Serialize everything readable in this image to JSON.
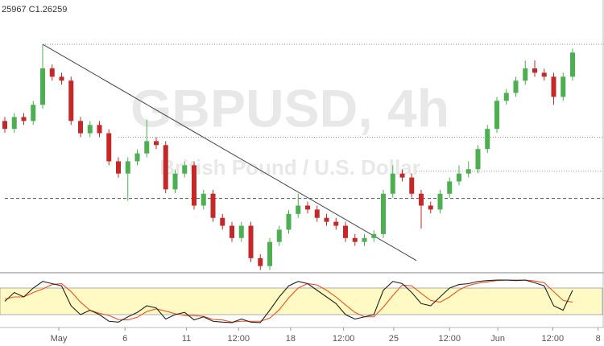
{
  "chart_data": {
    "type": "candlestick",
    "header": "25967  C1.26259",
    "watermark": "GBPUSD, 4h",
    "watermark_sub": "British Pound / U.S. Dollar",
    "up_color": "#4caf50",
    "down_color": "#c62828",
    "ylim": [
      1.2066,
      1.2758
    ],
    "open": [
      1.2452,
      1.2432,
      1.2462,
      1.2452,
      1.2493,
      1.2585,
      1.2564,
      1.2554,
      1.2452,
      1.2421,
      1.2442,
      1.2421,
      1.235,
      1.2319,
      1.235,
      1.237,
      1.2401,
      1.2391,
      1.2279,
      1.2319,
      1.234,
      1.2238,
      1.2268,
      1.2207,
      1.2187,
      1.2156,
      1.2187,
      1.2105,
      1.2085,
      1.2146,
      1.2177,
      1.2217,
      1.2238,
      1.2228,
      1.2207,
      1.2197,
      1.2187,
      1.2156,
      1.2146,
      1.2156,
      1.2166,
      1.2268,
      1.2319,
      1.2309,
      1.2268,
      1.2238,
      1.2228,
      1.2268,
      1.2299,
      1.2319,
      1.233,
      1.2381,
      1.2432,
      1.2503,
      1.2523,
      1.2554,
      1.2585,
      1.2574,
      1.2564,
      1.2513,
      1.2564
    ],
    "high": [
      1.2462,
      1.2472,
      1.2472,
      1.2503,
      1.2646,
      1.2595,
      1.2574,
      1.2564,
      1.2462,
      1.2452,
      1.2452,
      1.2431,
      1.236,
      1.236,
      1.238,
      1.2456,
      1.2411,
      1.2401,
      1.2329,
      1.235,
      1.235,
      1.2278,
      1.2278,
      1.2217,
      1.2197,
      1.2197,
      1.2197,
      1.2115,
      1.2156,
      1.2187,
      1.2227,
      1.2268,
      1.2248,
      1.2238,
      1.2217,
      1.2207,
      1.2197,
      1.2166,
      1.2166,
      1.2176,
      1.2278,
      1.234,
      1.2329,
      1.2319,
      1.2278,
      1.2248,
      1.2278,
      1.2309,
      1.234,
      1.235,
      1.2391,
      1.2442,
      1.2513,
      1.2533,
      1.2564,
      1.2605,
      1.2605,
      1.2584,
      1.2574,
      1.2574,
      1.2635
    ],
    "low": [
      1.2422,
      1.2422,
      1.2442,
      1.2442,
      1.2483,
      1.2554,
      1.2544,
      1.2442,
      1.2411,
      1.2411,
      1.2411,
      1.234,
      1.2309,
      1.225,
      1.234,
      1.236,
      1.2381,
      1.2269,
      1.2269,
      1.2309,
      1.2228,
      1.2228,
      1.2197,
      1.2177,
      1.2146,
      1.2146,
      1.2095,
      1.2075,
      1.2075,
      1.2136,
      1.2167,
      1.2207,
      1.2218,
      1.2197,
      1.2187,
      1.2177,
      1.2146,
      1.2136,
      1.2136,
      1.2146,
      1.2156,
      1.2258,
      1.2299,
      1.2258,
      1.218,
      1.2218,
      1.2218,
      1.2258,
      1.2289,
      1.2309,
      1.232,
      1.2371,
      1.2422,
      1.2493,
      1.2513,
      1.2544,
      1.2564,
      1.2554,
      1.2493,
      1.2503,
      1.2554
    ],
    "close": [
      1.2432,
      1.2462,
      1.2452,
      1.2493,
      1.2585,
      1.2564,
      1.2554,
      1.2452,
      1.2421,
      1.2442,
      1.2421,
      1.235,
      1.2319,
      1.235,
      1.237,
      1.2401,
      1.2391,
      1.2279,
      1.2319,
      1.234,
      1.2238,
      1.2268,
      1.2207,
      1.2187,
      1.2156,
      1.2187,
      1.2105,
      1.2085,
      1.2146,
      1.2177,
      1.2217,
      1.2238,
      1.2228,
      1.2207,
      1.2197,
      1.2187,
      1.2156,
      1.2146,
      1.2156,
      1.2166,
      1.2268,
      1.2319,
      1.2309,
      1.2268,
      1.2238,
      1.2228,
      1.2268,
      1.2299,
      1.2319,
      1.233,
      1.2381,
      1.2432,
      1.2503,
      1.2523,
      1.2554,
      1.2585,
      1.2574,
      1.2564,
      1.2513,
      1.2564,
      1.2625
    ],
    "levels": [
      {
        "value": 1.2646,
        "style": "dotted",
        "from": 4
      },
      {
        "value": 1.2411,
        "style": "dotted",
        "from": 12
      },
      {
        "value": 1.2325,
        "style": "dotted",
        "from": 43.5
      },
      {
        "value": 1.2256,
        "style": "dashed",
        "from": 0
      }
    ],
    "trendline": {
      "from": [
        4,
        1.2646
      ],
      "to": [
        43.5,
        1.2099
      ],
      "color": "#444"
    },
    "stochastic": {
      "lim": [
        0,
        100
      ],
      "bands": [
        20,
        80
      ],
      "band_color": "#fff9c4",
      "k_color": "#222",
      "d_color": "#f4511e",
      "k": [
        50,
        70,
        60,
        80,
        95,
        90,
        85,
        40,
        20,
        30,
        20,
        5,
        3,
        15,
        25,
        40,
        35,
        10,
        20,
        25,
        8,
        15,
        5,
        3,
        2,
        10,
        3,
        2,
        30,
        60,
        85,
        95,
        90,
        75,
        60,
        45,
        20,
        10,
        15,
        20,
        75,
        95,
        90,
        70,
        45,
        40,
        60,
        80,
        88,
        90,
        95,
        97,
        98,
        98,
        97,
        98,
        92,
        85,
        40,
        30,
        75
      ],
      "d": [
        55,
        60,
        60,
        70,
        78,
        88,
        90,
        72,
        48,
        30,
        23,
        18,
        9,
        8,
        14,
        27,
        33,
        28,
        22,
        18,
        18,
        16,
        9,
        8,
        3,
        5,
        5,
        5,
        12,
        31,
        58,
        80,
        90,
        87,
        75,
        60,
        42,
        25,
        15,
        15,
        37,
        63,
        87,
        85,
        68,
        52,
        48,
        60,
        76,
        86,
        91,
        94,
        97,
        98,
        98,
        98,
        96,
        92,
        72,
        52,
        48
      ]
    },
    "xticks": [
      {
        "value": 5.7,
        "label": "May"
      },
      {
        "value": 12.7,
        "label": "6"
      },
      {
        "value": 19.2,
        "label": "11"
      },
      {
        "value": 24.7,
        "label": "12:00"
      },
      {
        "value": 30.2,
        "label": "18"
      },
      {
        "value": 35.8,
        "label": "12:00"
      },
      {
        "value": 41.1,
        "label": "25"
      },
      {
        "value": 47,
        "label": "12:00"
      },
      {
        "value": 52.1,
        "label": "Jun"
      },
      {
        "value": 57.9,
        "label": "12:00"
      },
      {
        "value": 62.7,
        "label": "8"
      }
    ]
  }
}
